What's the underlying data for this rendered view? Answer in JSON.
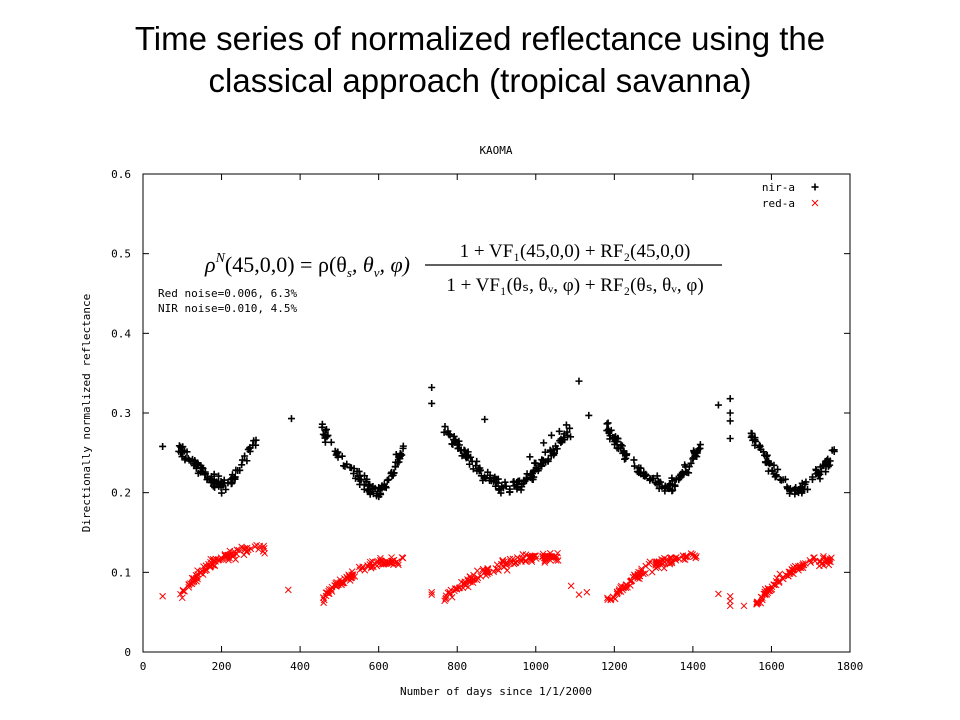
{
  "slide": {
    "title_line1": "Time series of normalized reflectance using the",
    "title_line2": "classical approach (tropical savanna)"
  },
  "chart_data": {
    "type": "scatter",
    "title": "KAOMA",
    "xlabel": "Number of days since 1/1/2000",
    "ylabel": "Directionally normalized reflectance",
    "xlim": [
      0,
      1800
    ],
    "ylim": [
      0,
      0.6
    ],
    "x_ticks": [
      0,
      200,
      400,
      600,
      800,
      1000,
      1200,
      1400,
      1600,
      1800
    ],
    "y_ticks": [
      0,
      0.1,
      0.2,
      0.3,
      0.4,
      0.5,
      0.6
    ],
    "x_tick_labels": [
      "0",
      "200",
      "400",
      "600",
      "800",
      "1000",
      "1200",
      "1400",
      "1600",
      "1800"
    ],
    "y_tick_labels": [
      "0",
      "0.1",
      "0.2",
      "0.3",
      "0.4",
      "0.5",
      "0.6"
    ],
    "grid": false,
    "legend_position": "top-right",
    "annotations": [
      "Red noise=0.006, 6.3%",
      "NIR noise=0.010, 4.5%"
    ],
    "formula": {
      "lhs": "ρ",
      "lhs_sup": "N",
      "lhs_args": "(45,0,0) = ρ(θ",
      "lhs_sub1": "s",
      "lhs_mid": ", θ",
      "lhs_sub2": "v",
      "lhs_end": ", φ)",
      "numerator": "1 + VF₁(45,0,0) + RF₂(45,0,0)",
      "denominator": "1 + VF₁(θₛ, θᵥ, φ) + RF₂(θₛ, θᵥ, φ)"
    },
    "series": [
      {
        "name": "nir-a",
        "color": "#000000",
        "marker": "plus",
        "seasons": [
          {
            "start": 90,
            "end": 290,
            "min_x": 210,
            "ymin": 0.21,
            "yleft": 0.255,
            "yright": 0.27
          },
          {
            "start": 455,
            "end": 665,
            "min_x": 600,
            "ymin": 0.2,
            "yleft": 0.28,
            "yright": 0.26
          },
          {
            "start": 765,
            "end": 1090,
            "min_x": 930,
            "ymin": 0.205,
            "yleft": 0.28,
            "yright": 0.28
          },
          {
            "start": 1180,
            "end": 1420,
            "min_x": 1335,
            "ymin": 0.205,
            "yleft": 0.28,
            "yright": 0.26
          },
          {
            "start": 1545,
            "end": 1760,
            "min_x": 1665,
            "ymin": 0.2,
            "yleft": 0.275,
            "yright": 0.25
          }
        ],
        "extra_points": [
          [
            50,
            0.258
          ],
          [
            378,
            0.293
          ],
          [
            735,
            0.332
          ],
          [
            735,
            0.312
          ],
          [
            1110,
            0.34
          ],
          [
            1135,
            0.297
          ],
          [
            1465,
            0.31
          ],
          [
            1495,
            0.318
          ],
          [
            1495,
            0.3
          ],
          [
            1495,
            0.29
          ],
          [
            1495,
            0.268
          ],
          [
            870,
            0.292
          ],
          [
            1020,
            0.2625
          ],
          [
            1040,
            0.272
          ],
          [
            1060,
            0.277
          ],
          [
            1078,
            0.285
          ],
          [
            985,
            0.245
          ],
          [
            1000,
            0.237
          ]
        ]
      },
      {
        "name": "red-a",
        "color": "#ff0000",
        "marker": "x",
        "seasons": [
          {
            "start": 90,
            "end": 310,
            "ystart": 0.07,
            "yend": 0.13
          },
          {
            "start": 455,
            "end": 665,
            "ystart": 0.065,
            "yend": 0.115
          },
          {
            "start": 760,
            "end": 1060,
            "ystart": 0.065,
            "yend": 0.12
          },
          {
            "start": 1180,
            "end": 1410,
            "ystart": 0.06,
            "yend": 0.12
          },
          {
            "start": 1560,
            "end": 1760,
            "ystart": 0.06,
            "yend": 0.115
          }
        ],
        "extra_points": [
          [
            50,
            0.07
          ],
          [
            100,
            0.068
          ],
          [
            370,
            0.078
          ],
          [
            735,
            0.072
          ],
          [
            735,
            0.075
          ],
          [
            1090,
            0.083
          ],
          [
            1110,
            0.072
          ],
          [
            1130,
            0.075
          ],
          [
            1465,
            0.073
          ],
          [
            1495,
            0.07
          ],
          [
            1495,
            0.064
          ],
          [
            1495,
            0.058
          ],
          [
            1530,
            0.058
          ]
        ]
      }
    ]
  }
}
